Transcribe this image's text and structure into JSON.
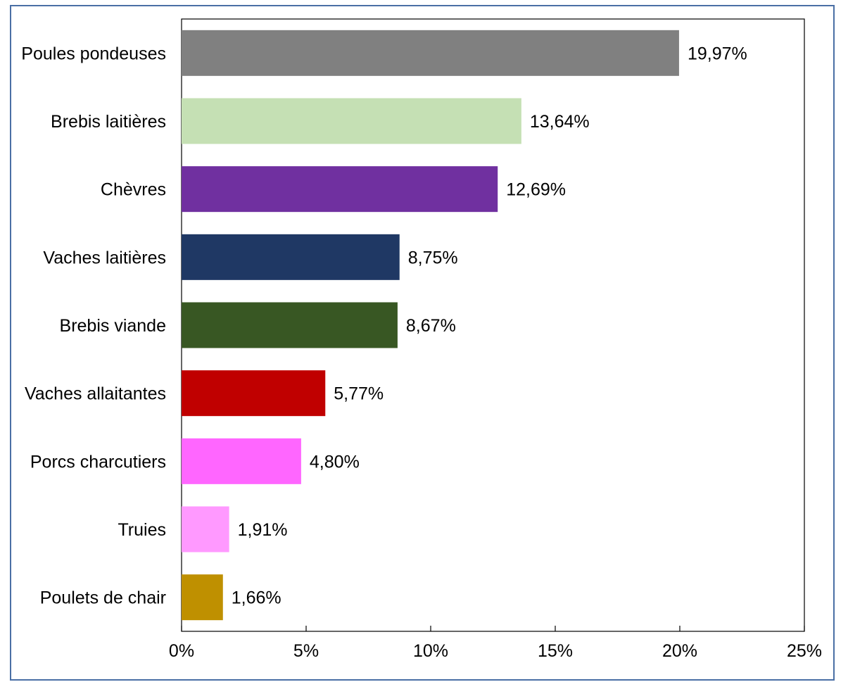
{
  "chart_data": {
    "type": "bar",
    "orientation": "horizontal",
    "categories": [
      "Poules pondeuses",
      "Brebis laitières",
      "Chèvres",
      "Vaches laitières",
      "Brebis viande",
      "Vaches allaitantes",
      "Porcs charcutiers",
      "Truies",
      "Poulets de chair"
    ],
    "values": [
      19.97,
      13.64,
      12.69,
      8.75,
      8.67,
      5.77,
      4.8,
      1.91,
      1.66
    ],
    "value_labels": [
      "19,97%",
      "13,64%",
      "12,69%",
      "8,75%",
      "8,67%",
      "5,77%",
      "4,80%",
      "1,91%",
      "1,66%"
    ],
    "colors": [
      "#808080",
      "#c5e0b4",
      "#7030a0",
      "#1f3864",
      "#385723",
      "#c00000",
      "#ff66ff",
      "#ff99ff",
      "#bf9000"
    ],
    "xlim": [
      0,
      25
    ],
    "x_ticks": [
      0,
      5,
      10,
      15,
      20,
      25
    ],
    "x_tick_labels": [
      "0%",
      "5%",
      "10%",
      "15%",
      "20%",
      "25%"
    ],
    "title": "",
    "xlabel": "",
    "ylabel": "",
    "grid": false,
    "legend": "none"
  }
}
